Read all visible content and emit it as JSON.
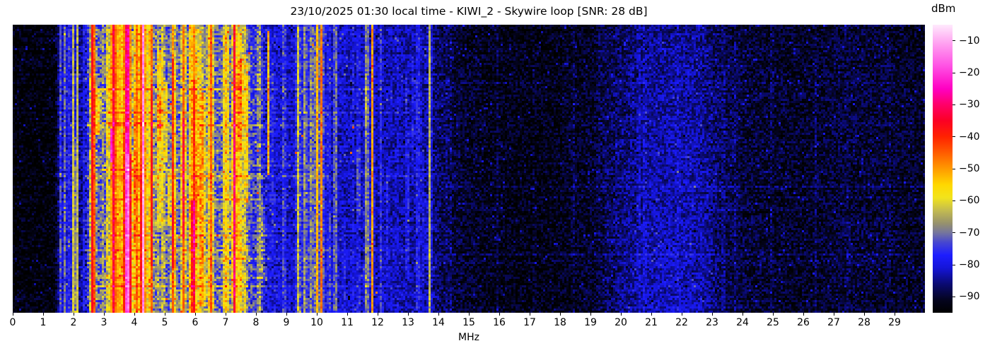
{
  "chart_data": {
    "type": "heatmap",
    "title": "23/10/2025 01:30 local time - KIWI_2 - Skywire loop [SNR: 28 dB]",
    "subtitle": "",
    "xlabel": "MHz",
    "ylabel": "",
    "x_range": [
      0,
      30
    ],
    "x_ticks": [
      0,
      1,
      2,
      3,
      4,
      5,
      6,
      7,
      8,
      9,
      10,
      11,
      12,
      13,
      14,
      15,
      16,
      17,
      18,
      19,
      20,
      21,
      22,
      23,
      24,
      25,
      26,
      27,
      28,
      29
    ],
    "y_axis_note": "waterfall time rows, unlabeled",
    "grid": false,
    "legend": "none",
    "colorbar": {
      "label": "dBm",
      "ticks": [
        -10,
        -20,
        -30,
        -40,
        -50,
        -60,
        -70,
        -80,
        -90
      ],
      "value_top": -5,
      "value_bottom": -95,
      "position": "right"
    },
    "colormap_stops": [
      [
        -95,
        "#000000"
      ],
      [
        -91,
        "#04041e"
      ],
      [
        -86,
        "#0a0a72"
      ],
      [
        -81,
        "#1515d8"
      ],
      [
        -77,
        "#1d1dff"
      ],
      [
        -73,
        "#4747d0"
      ],
      [
        -70,
        "#75759d"
      ],
      [
        -67,
        "#97926c"
      ],
      [
        -63,
        "#c3bb50"
      ],
      [
        -59,
        "#f2e41c"
      ],
      [
        -55,
        "#ffd800"
      ],
      [
        -50,
        "#ff9a00"
      ],
      [
        -45,
        "#ff5c00"
      ],
      [
        -40,
        "#ff2200"
      ],
      [
        -35,
        "#fb0024"
      ],
      [
        -30,
        "#ff0068"
      ],
      [
        -25,
        "#ff00c2"
      ],
      [
        -18,
        "#ff50e4"
      ],
      [
        -11,
        "#ff9ff0"
      ],
      [
        -5,
        "#ffeafd"
      ]
    ],
    "noise_floor_profile_dbm": [
      [
        0,
        -94
      ],
      [
        1.35,
        -94
      ],
      [
        1.55,
        -85
      ],
      [
        2.35,
        -84
      ],
      [
        2.55,
        -73
      ],
      [
        3.0,
        -72
      ],
      [
        4.0,
        -70.5
      ],
      [
        5.0,
        -72
      ],
      [
        6.0,
        -70.5
      ],
      [
        7.0,
        -71.5
      ],
      [
        7.8,
        -73
      ],
      [
        8.25,
        -80
      ],
      [
        9.2,
        -82
      ],
      [
        9.45,
        -77.5
      ],
      [
        10.1,
        -76.5
      ],
      [
        10.45,
        -82
      ],
      [
        11.5,
        -82.5
      ],
      [
        12.5,
        -83
      ],
      [
        13.6,
        -84
      ],
      [
        14.1,
        -88
      ],
      [
        15,
        -91
      ],
      [
        16,
        -92
      ],
      [
        17,
        -92.5
      ],
      [
        18,
        -92
      ],
      [
        19,
        -90.5
      ],
      [
        20,
        -87.5
      ],
      [
        21,
        -85
      ],
      [
        21.8,
        -84.3
      ],
      [
        22.6,
        -84.8
      ],
      [
        23.3,
        -88
      ],
      [
        24,
        -89.5
      ],
      [
        25,
        -90.5
      ],
      [
        26,
        -91
      ],
      [
        27,
        -90
      ],
      [
        28,
        -89.8
      ],
      [
        29,
        -90.3
      ],
      [
        30,
        -91
      ]
    ],
    "carriers": [
      {
        "f": 4.3,
        "w": 0.045,
        "boost": 28
      },
      {
        "f": 7.27,
        "w": 0.045,
        "boost": 26
      },
      {
        "f": 10.15,
        "w": 0.04,
        "boost": 30
      },
      {
        "f": 11.82,
        "w": 0.035,
        "boost": 31
      },
      {
        "f": 8.42,
        "w": 0.035,
        "boost": 33,
        "t0": 0.02,
        "t1": 0.52
      },
      {
        "f": 3.25,
        "w": 0.04,
        "boost": 29,
        "t0": 0.36,
        "t1": 0.48
      },
      {
        "f": 13.72,
        "w": 0.05,
        "boost": 22
      },
      {
        "f": 9.38,
        "w": 0.05,
        "boost": 16
      },
      {
        "f": 10.0,
        "w": 0.05,
        "boost": 18
      },
      {
        "f": 9.62,
        "w": 0.04,
        "boost": 12
      },
      {
        "f": 8.92,
        "w": 0.04,
        "boost": 10
      },
      {
        "f": 11.65,
        "w": 0.04,
        "boost": 14
      },
      {
        "f": 1.72,
        "w": 0.03,
        "boost": 11
      },
      {
        "f": 1.98,
        "w": 0.03,
        "boost": 13
      },
      {
        "f": 2.12,
        "w": 0.03,
        "boost": 12
      },
      {
        "f": 2.62,
        "w": 0.06,
        "boost": 14
      },
      {
        "f": 3.85,
        "w": 0.07,
        "boost": 12
      },
      {
        "f": 4.05,
        "w": 0.05,
        "boost": 10
      },
      {
        "f": 5.95,
        "w": 0.09,
        "boost": 12
      },
      {
        "f": 6.15,
        "w": 0.07,
        "boost": 11
      },
      {
        "f": 7.05,
        "w": 0.05,
        "boost": 10
      }
    ],
    "events": [
      {
        "t": 0.34,
        "f0": 2.9,
        "f1": 4.7,
        "boost": 9
      },
      {
        "t": 0.5,
        "f0": 2.9,
        "f1": 5.7,
        "boost": 8
      },
      {
        "t": 0.2,
        "f0": 14,
        "f1": 30,
        "boost": 2.5
      },
      {
        "t": 0.56,
        "f0": 14,
        "f1": 30,
        "boost": 2.5
      },
      {
        "t": 0.8,
        "f0": 14,
        "f1": 30,
        "boost": 2.5
      }
    ],
    "band_time_gradient": {
      "f0": 19.3,
      "f1": 23.5,
      "edge": 0.7,
      "max_boost": 2.5
    },
    "render": {
      "seed": 1337,
      "cols": 430,
      "rows": 136,
      "procedural_stripes": [
        {
          "f0": 2.4,
          "f1": 8.3,
          "count": 70,
          "boost_min": 5,
          "boost_max": 16,
          "w_min": 0.03,
          "w_max": 0.11,
          "partial_prob": 0.35
        },
        {
          "f0": 1.5,
          "f1": 2.4,
          "count": 14,
          "boost_min": 3,
          "boost_max": 8,
          "w_min": 0.03,
          "w_max": 0.06,
          "partial_prob": 0.1
        },
        {
          "f0": 8.3,
          "f1": 10.3,
          "count": 10,
          "boost_min": 2,
          "boost_max": 6,
          "w_min": 0.03,
          "w_max": 0.06,
          "partial_prob": 0.2
        },
        {
          "f0": 10.3,
          "f1": 13.6,
          "count": 26,
          "boost_min": 2,
          "boost_max": 7,
          "w_min": 0.03,
          "w_max": 0.06,
          "partial_prob": 0.2
        },
        {
          "f0": 14.0,
          "f1": 30.0,
          "count": 22,
          "boost_min": 1.5,
          "boost_max": 3.5,
          "w_min": 0.03,
          "w_max": 0.06,
          "partial_prob": 0.1
        }
      ],
      "procedural_events": {
        "count": 13,
        "f0": 2.4,
        "f1_min": 8.3,
        "f1_max": 13.8,
        "boost_min": 3,
        "boost_max": 7
      }
    }
  }
}
